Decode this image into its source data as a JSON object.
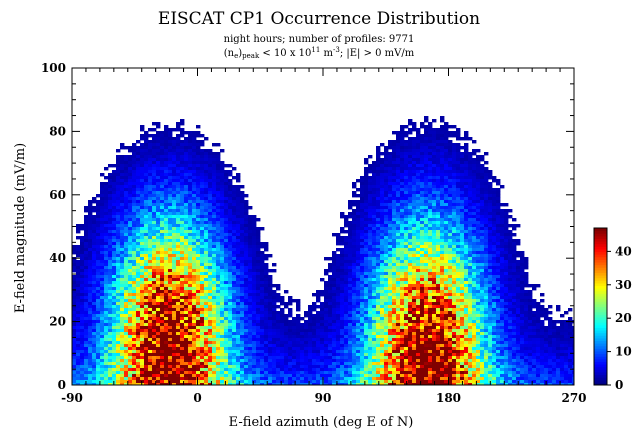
{
  "chart_data": {
    "type": "heatmap",
    "title": "EISCAT CP1 Occurrence Distribution",
    "subtitle_line1": "night hours;  number of profiles:  9771",
    "subtitle_line2": {
      "part1": "(n",
      "sub1": "e",
      "part2": ")",
      "sub2": "peak",
      "part3": " < 10 x 10",
      "sup1": "11",
      "part4": " m",
      "sup2": "-3",
      "part5": ";  |E|  > 0 mV/m"
    },
    "xlabel": "E-field azimuth (deg E of N)",
    "ylabel": "E-field magnitude (mV/m)",
    "xlim": [
      -90,
      270
    ],
    "ylim": [
      0,
      100
    ],
    "x_ticks": [
      -90,
      0,
      90,
      180,
      270
    ],
    "y_ticks": [
      0,
      20,
      40,
      60,
      80,
      100
    ],
    "colorbar": {
      "ticks": [
        0,
        10,
        20,
        30,
        40
      ],
      "range": [
        0,
        47
      ],
      "colormap": "jet"
    },
    "density_peaks": [
      {
        "azimuth": -20,
        "magnitude": 14,
        "peak_count": 47
      },
      {
        "azimuth": 165,
        "magnitude": 10,
        "peak_count": 46
      }
    ]
  }
}
